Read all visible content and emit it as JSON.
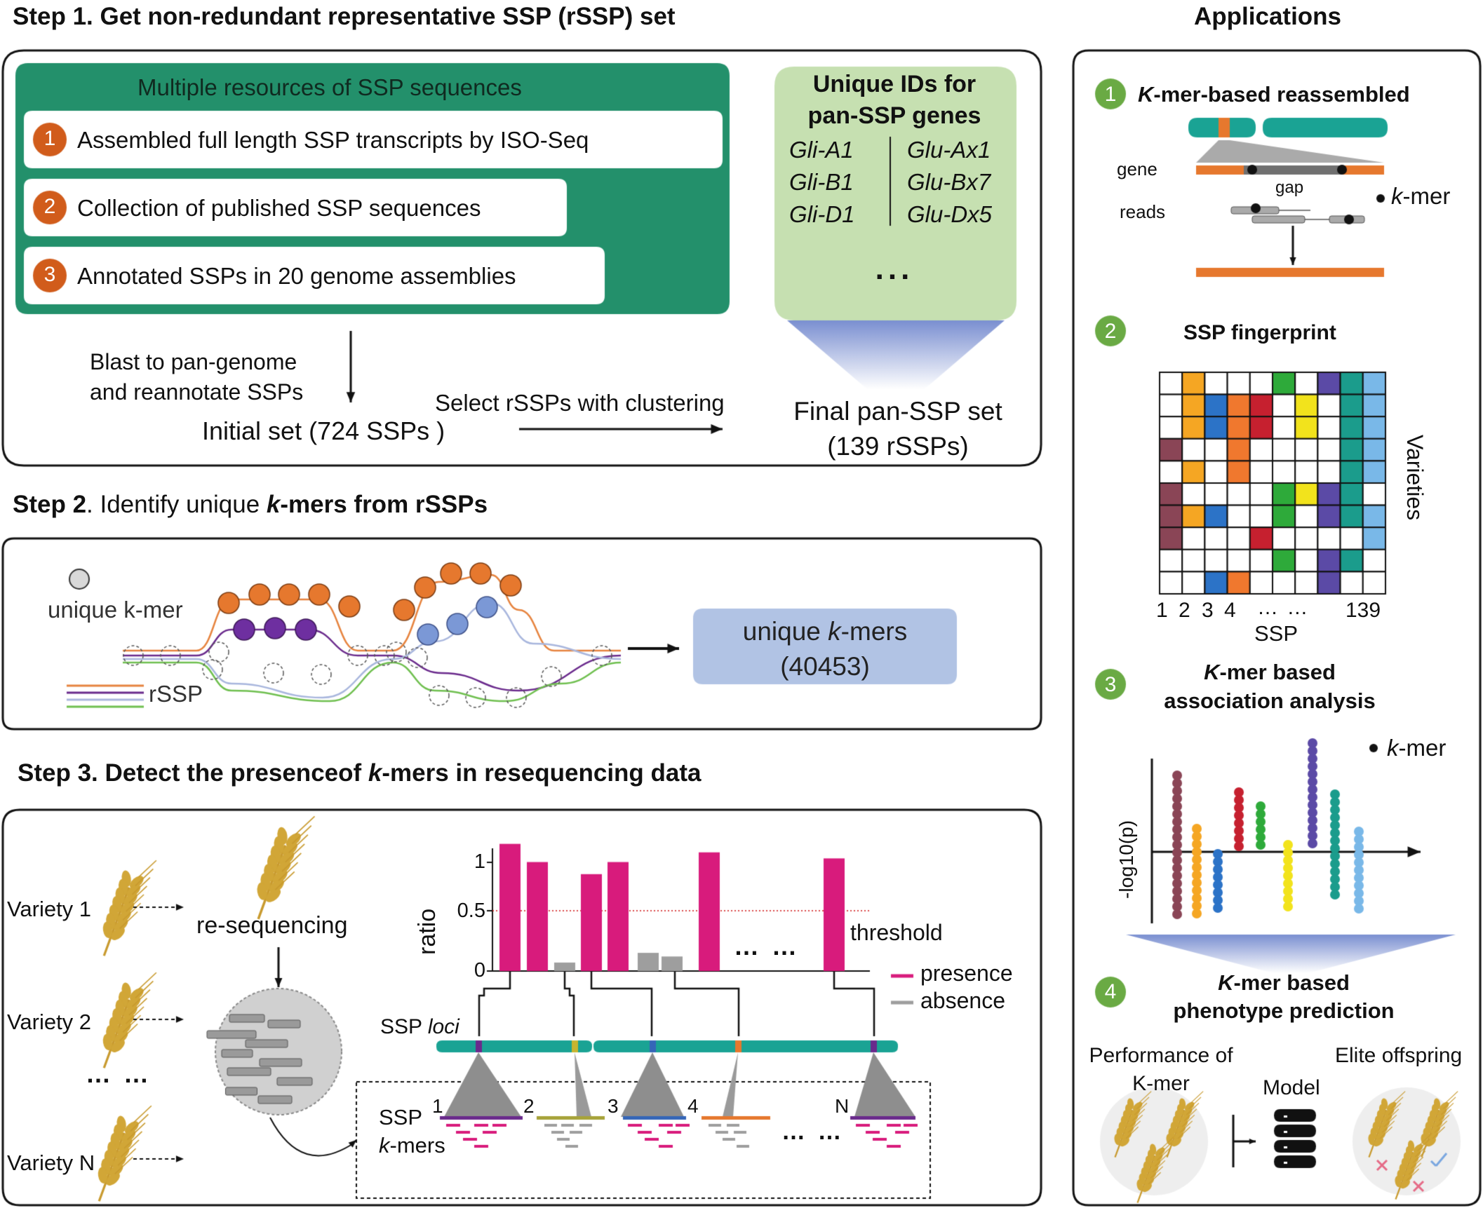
{
  "step1": {
    "title": "Step 1. Get non-redundant representative SSP (rSSP) set",
    "resources_title": "Multiple resources of SSP sequences",
    "resources": [
      {
        "num": "1",
        "label": "Assembled full length SSP transcripts by ISO-Seq"
      },
      {
        "num": "2",
        "label": "Collection of published SSP sequences"
      },
      {
        "num": "3",
        "label": "Annotated SSPs in 20 genome assemblies"
      }
    ],
    "unique_ids_title_1": "Unique IDs for",
    "unique_ids_title_2": "pan-SSP genes",
    "ids_left": [
      "Gli-A1",
      "Gli-B1",
      "Gli-D1"
    ],
    "ids_right": [
      "Glu-Ax1",
      "Glu-Bx7",
      "Glu-Dx5"
    ],
    "ids_more": "...",
    "blast_1": "Blast to pan-genome",
    "blast_2": "and reannotate SSPs",
    "initial_set": "Initial set (724 SSPs )",
    "select": "Select rSSPs with clustering",
    "final_1": "Final pan-SSP set",
    "final_2": "(139 rSSPs)"
  },
  "step2": {
    "title_a": "Step 2",
    "title_b": ". Identify unique ",
    "title_k": "k",
    "title_c": "-mers from rSSPs",
    "unique_kmer": "unique k-mer",
    "rssp": "rSSP",
    "box_k": "k",
    "box_1": "-mers",
    "box_pre": "unique ",
    "box_count": "(40453)"
  },
  "step3": {
    "title_a": "Step 3. Detect the presenceof ",
    "title_k": "k",
    "title_b": "-mers in resequencing data",
    "varieties": [
      "Variety 1",
      "Variety 2",
      "Variety N"
    ],
    "variety_dots": "… …",
    "resequencing": "re-sequencing",
    "ratio": "ratio",
    "yticks": [
      "1",
      "0.5",
      "0"
    ],
    "threshold": "threshold",
    "bars_dots": "… …",
    "legend_presence": "presence",
    "legend_absence": "absence",
    "ssp_loci_a": "SSP ",
    "ssp_loci_b": "loci",
    "ssp_label": "SSP",
    "kmers_k": "k",
    "kmers_label": "-mers",
    "locus_nums": [
      "1",
      "2",
      "3",
      "4",
      "N"
    ],
    "locus_dots": "… …",
    "colors": {
      "presence": "#d81b7c",
      "absence": "#9e9e9e",
      "locus_bar": "#1aa394"
    }
  },
  "chart_data": {
    "type": "bar",
    "ylabel": "ratio",
    "ylim": [
      0,
      1.1
    ],
    "threshold": 0.5,
    "values": [
      1.05,
      0.9,
      0.07,
      0.8,
      0.9,
      0.15,
      0.12,
      0.98,
      0.93
    ],
    "status": [
      "presence",
      "presence",
      "absence",
      "presence",
      "presence",
      "absence",
      "absence",
      "presence",
      "presence"
    ]
  },
  "applications": {
    "title": "Applications",
    "items": [
      {
        "num": "1",
        "k": "K",
        "label": "-mer-based reassembled"
      },
      {
        "num": "2",
        "label": "SSP fingerprint"
      },
      {
        "num": "3",
        "k": "K",
        "label_1": "-mer based",
        "label_2": "association analysis"
      },
      {
        "num": "4",
        "k": "K",
        "label_1": "-mer based",
        "label_2": "phenotype prediction"
      }
    ],
    "gene": "gene",
    "gap": "gap",
    "reads": "reads",
    "kmer_legend_k": "k",
    "kmer_legend": "-mer",
    "varieties": "Varieties",
    "ssp_axis": "SSP",
    "x_ticks": [
      "1",
      "2",
      "3",
      "4",
      "… …",
      "139"
    ],
    "log_label": "-log10(p)",
    "performance_1": "Performance of",
    "performance_2": "K-mer",
    "model": "Model",
    "elite": "Elite offspring"
  }
}
